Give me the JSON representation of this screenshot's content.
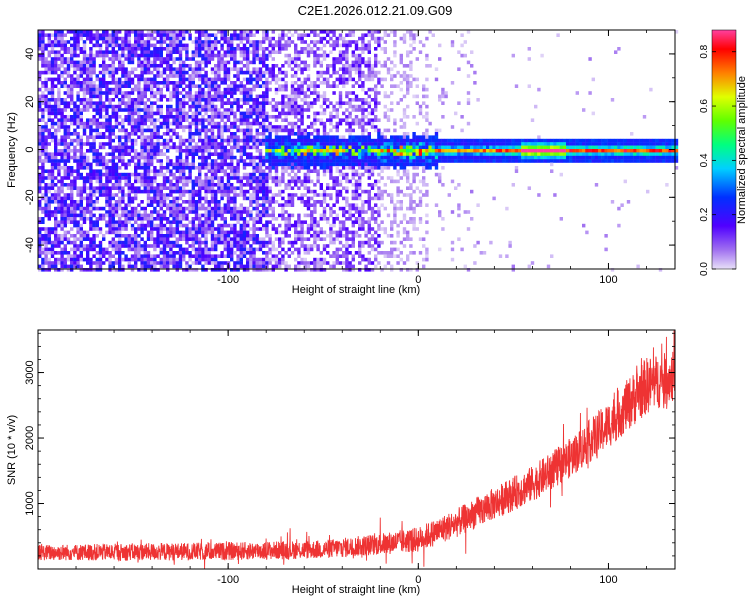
{
  "title": "C2E1.2026.012.21.09.G09",
  "chart_data": [
    {
      "type": "heatmap",
      "xlabel": "Height of straight line (km)",
      "ylabel": "Frequency (Hz)",
      "xlim": [
        -200,
        135
      ],
      "ylim": [
        -50,
        50
      ],
      "x_ticks": [
        -100,
        0,
        100
      ],
      "y_ticks": [
        -40,
        -20,
        0,
        20,
        40
      ],
      "colorbar": {
        "label": "Normalized spectral amplitude",
        "range": [
          0.0,
          0.88
        ],
        "ticks": [
          0.0,
          0.2,
          0.4,
          0.6,
          0.8
        ],
        "tick_labels": [
          "0.0",
          "0.2",
          "0.4",
          "0.6",
          "0.8"
        ]
      },
      "description_values": {
        "noise_extent_km": [
          -200,
          0
        ],
        "signal_band_start_km": -80,
        "signal_center_hz": 0,
        "peak_amplitude": 0.88
      }
    },
    {
      "type": "line",
      "xlabel": "Height of straight line (km)",
      "ylabel": "SNR (10 * v/v)",
      "xlim": [
        -200,
        135
      ],
      "ylim": [
        0,
        3650
      ],
      "x_ticks": [
        -100,
        0,
        100
      ],
      "y_ticks": [
        1000,
        2000,
        3000
      ],
      "color": "#ee3333",
      "envelope": {
        "x": [
          -200,
          -150,
          -100,
          -50,
          -20,
          0,
          20,
          40,
          60,
          80,
          100,
          120,
          135
        ],
        "mean": [
          250,
          260,
          270,
          300,
          380,
          450,
          700,
          1000,
          1300,
          1700,
          2200,
          2800,
          2950
        ],
        "spread": [
          220,
          240,
          250,
          260,
          300,
          350,
          400,
          450,
          500,
          550,
          650,
          800,
          700
        ]
      }
    }
  ]
}
